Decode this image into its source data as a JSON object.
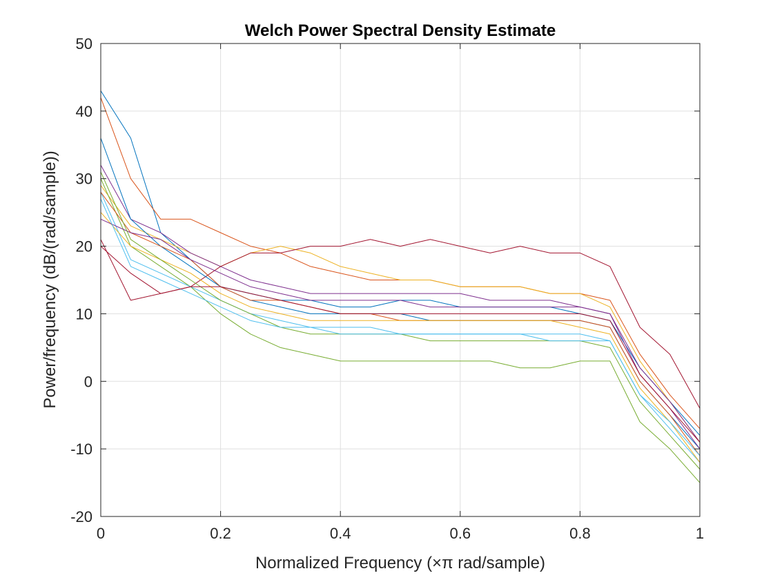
{
  "chart_data": {
    "type": "line",
    "title": "Welch Power Spectral Density Estimate",
    "xlabel": "Normalized Frequency  (×π rad/sample)",
    "ylabel": "Power/frequency (dB/(rad/sample))",
    "xlim": [
      0,
      1
    ],
    "ylim": [
      -20,
      50
    ],
    "xticks": [
      0,
      0.2,
      0.4,
      0.6,
      0.8,
      1
    ],
    "xtick_labels": [
      "0",
      "0.2",
      "0.4",
      "0.6",
      "0.8",
      "1"
    ],
    "yticks": [
      -20,
      -10,
      0,
      10,
      20,
      30,
      40,
      50
    ],
    "ytick_labels": [
      "-20",
      "-10",
      "0",
      "10",
      "20",
      "30",
      "40",
      "50"
    ],
    "grid": true,
    "x": [
      0,
      0.05,
      0.1,
      0.15,
      0.2,
      0.25,
      0.3,
      0.35,
      0.4,
      0.45,
      0.5,
      0.55,
      0.6,
      0.65,
      0.7,
      0.75,
      0.8,
      0.85,
      0.9,
      0.95,
      1
    ],
    "series": [
      {
        "color": "#0072BD",
        "values": [
          43,
          36,
          22,
          18,
          14,
          13,
          12,
          12,
          11,
          11,
          12,
          12,
          11,
          11,
          11,
          11,
          10,
          9,
          2,
          -3,
          -8
        ]
      },
      {
        "color": "#D95319",
        "values": [
          42,
          30,
          24,
          24,
          22,
          20,
          19,
          17,
          16,
          15,
          15,
          15,
          14,
          14,
          14,
          13,
          13,
          12,
          4,
          -2,
          -7
        ]
      },
      {
        "color": "#EDB120",
        "values": [
          29,
          23,
          21,
          19,
          17,
          19,
          20,
          19,
          17,
          16,
          15,
          15,
          14,
          14,
          14,
          13,
          13,
          11,
          3,
          -3,
          -9
        ]
      },
      {
        "color": "#7E2F8E",
        "values": [
          32,
          24,
          22,
          19,
          17,
          15,
          14,
          13,
          13,
          13,
          13,
          13,
          13,
          12,
          12,
          12,
          11,
          10,
          2,
          -3,
          -9
        ]
      },
      {
        "color": "#77AC30",
        "values": [
          30,
          20,
          17,
          14,
          10,
          7,
          5,
          4,
          3,
          3,
          3,
          3,
          3,
          3,
          2,
          2,
          3,
          3,
          -6,
          -10,
          -15
        ]
      },
      {
        "color": "#4DBEEE",
        "values": [
          28,
          18,
          16,
          14,
          12,
          10,
          9,
          8,
          8,
          8,
          7,
          7,
          7,
          7,
          7,
          7,
          7,
          6,
          -2,
          -7,
          -12
        ]
      },
      {
        "color": "#A2142F",
        "values": [
          21,
          12,
          13,
          14,
          17,
          19,
          19,
          20,
          20,
          21,
          20,
          21,
          20,
          19,
          20,
          19,
          19,
          17,
          8,
          4,
          -4
        ]
      },
      {
        "color": "#0072BD",
        "values": [
          36,
          24,
          20,
          17,
          14,
          12,
          11,
          10,
          10,
          10,
          10,
          9,
          9,
          9,
          9,
          9,
          9,
          8,
          0,
          -5,
          -10
        ]
      },
      {
        "color": "#D95319",
        "values": [
          28,
          22,
          20,
          18,
          14,
          12,
          12,
          11,
          10,
          10,
          9,
          9,
          9,
          9,
          9,
          9,
          9,
          8,
          0,
          -5,
          -11
        ]
      },
      {
        "color": "#EDB120",
        "values": [
          25,
          20,
          18,
          16,
          13,
          11,
          10,
          9,
          9,
          9,
          9,
          9,
          9,
          9,
          9,
          9,
          8,
          7,
          -1,
          -6,
          -12
        ]
      },
      {
        "color": "#7E2F8E",
        "values": [
          24,
          22,
          21,
          18,
          16,
          14,
          13,
          12,
          12,
          12,
          12,
          11,
          11,
          11,
          11,
          11,
          11,
          10,
          1,
          -4,
          -10
        ]
      },
      {
        "color": "#77AC30",
        "values": [
          31,
          21,
          18,
          15,
          12,
          10,
          8,
          7,
          7,
          7,
          7,
          6,
          6,
          6,
          6,
          6,
          6,
          5,
          -3,
          -8,
          -13
        ]
      },
      {
        "color": "#4DBEEE",
        "values": [
          27,
          17,
          15,
          13,
          11,
          9,
          8,
          8,
          7,
          7,
          7,
          7,
          7,
          7,
          7,
          6,
          6,
          6,
          -2,
          -6,
          -11
        ]
      },
      {
        "color": "#A2142F",
        "values": [
          20,
          16,
          13,
          14,
          14,
          13,
          12,
          11,
          10,
          10,
          10,
          10,
          10,
          10,
          10,
          10,
          10,
          9,
          1,
          -4,
          -9
        ]
      }
    ]
  }
}
